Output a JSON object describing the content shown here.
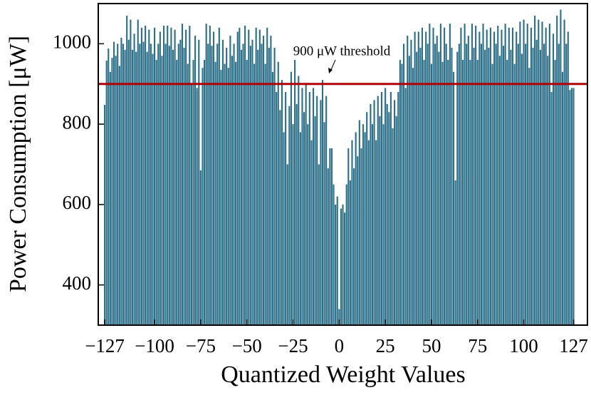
{
  "chart_data": {
    "type": "bar",
    "xlabel": "Quantized Weight Values",
    "ylabel": "Power Consumption [μW]",
    "color": "#2b6f88",
    "xlim": [
      -130.5,
      134.5
    ],
    "ylim": [
      300,
      1100
    ],
    "yticks": [
      400,
      600,
      800,
      1000
    ],
    "xticks": [
      {
        "value": -127,
        "label": "−127"
      },
      {
        "value": -100,
        "label": "−100"
      },
      {
        "value": -75,
        "label": "−75"
      },
      {
        "value": -50,
        "label": "−50"
      },
      {
        "value": -25,
        "label": "−25"
      },
      0,
      25,
      50,
      75,
      100,
      127
    ],
    "threshold": {
      "value": 900,
      "label": "900 μW threshold",
      "color": "#b00000"
    },
    "x": [
      -127,
      -126,
      -125,
      -124,
      -123,
      -122,
      -121,
      -120,
      -119,
      -118,
      -117,
      -116,
      -115,
      -114,
      -113,
      -112,
      -111,
      -110,
      -109,
      -108,
      -107,
      -106,
      -105,
      -104,
      -103,
      -102,
      -101,
      -100,
      -99,
      -98,
      -97,
      -96,
      -95,
      -94,
      -93,
      -92,
      -91,
      -90,
      -89,
      -88,
      -87,
      -86,
      -85,
      -84,
      -83,
      -82,
      -81,
      -80,
      -79,
      -78,
      -77,
      -76,
      -75,
      -74,
      -73,
      -72,
      -71,
      -70,
      -69,
      -68,
      -67,
      -66,
      -65,
      -64,
      -63,
      -62,
      -61,
      -60,
      -59,
      -58,
      -57,
      -56,
      -55,
      -54,
      -53,
      -52,
      -51,
      -50,
      -49,
      -48,
      -47,
      -46,
      -45,
      -44,
      -43,
      -42,
      -41,
      -40,
      -39,
      -38,
      -37,
      -36,
      -35,
      -34,
      -33,
      -32,
      -31,
      -30,
      -29,
      -28,
      -27,
      -26,
      -25,
      -24,
      -23,
      -22,
      -21,
      -20,
      -19,
      -18,
      -17,
      -16,
      -15,
      -14,
      -13,
      -12,
      -11,
      -10,
      -9,
      -8,
      -7,
      -6,
      -5,
      -4,
      -3,
      -2,
      -1,
      0,
      1,
      2,
      3,
      4,
      5,
      6,
      7,
      8,
      9,
      10,
      11,
      12,
      13,
      14,
      15,
      16,
      17,
      18,
      19,
      20,
      21,
      22,
      23,
      24,
      25,
      26,
      27,
      28,
      29,
      30,
      31,
      32,
      33,
      34,
      35,
      36,
      37,
      38,
      39,
      40,
      41,
      42,
      43,
      44,
      45,
      46,
      47,
      48,
      49,
      50,
      51,
      52,
      53,
      54,
      55,
      56,
      57,
      58,
      59,
      60,
      61,
      62,
      63,
      64,
      65,
      66,
      67,
      68,
      69,
      70,
      71,
      72,
      73,
      74,
      75,
      76,
      77,
      78,
      79,
      80,
      81,
      82,
      83,
      84,
      85,
      86,
      87,
      88,
      89,
      90,
      91,
      92,
      93,
      94,
      95,
      96,
      97,
      98,
      99,
      100,
      101,
      102,
      103,
      104,
      105,
      106,
      107,
      108,
      109,
      110,
      111,
      112,
      113,
      114,
      115,
      116,
      117,
      118,
      119,
      120,
      121,
      122,
      123,
      124,
      125,
      126,
      127
    ],
    "values": [
      848,
      958,
      988,
      930,
      965,
      1005,
      970,
      1000,
      945,
      1015,
      1000,
      985,
      1070,
      1010,
      1060,
      985,
      1025,
      980,
      1060,
      1000,
      1040,
      1005,
      1045,
      980,
      1035,
      1000,
      975,
      1040,
      960,
      1000,
      1030,
      970,
      1045,
      1000,
      1045,
      995,
      1040,
      985,
      1035,
      960,
      1000,
      1010,
      1050,
      990,
      1035,
      950,
      1045,
      900,
      960,
      1020,
      890,
      1010,
      685,
      940,
      960,
      1050,
      1000,
      1045,
      995,
      1030,
      955,
      1000,
      1040,
      935,
      1010,
      950,
      990,
      940,
      1020,
      970,
      1000,
      955,
      1030,
      1040,
      985,
      1000,
      1045,
      960,
      1035,
      995,
      1010,
      950,
      1040,
      985,
      1035,
      1000,
      1020,
      950,
      1040,
      990,
      1020,
      930,
      990,
      880,
      955,
      835,
      910,
      780,
      880,
      700,
      845,
      930,
      800,
      960,
      850,
      920,
      780,
      890,
      830,
      900,
      800,
      880,
      760,
      890,
      820,
      870,
      700,
      860,
      910,
      805,
      870,
      690,
      740,
      740,
      650,
      600,
      620,
      340,
      590,
      600,
      580,
      650,
      740,
      660,
      760,
      690,
      780,
      720,
      810,
      740,
      800,
      780,
      830,
      760,
      850,
      800,
      860,
      760,
      870,
      820,
      880,
      800,
      890,
      850,
      830,
      880,
      790,
      860,
      820,
      880,
      960,
      950,
      1000,
      890,
      1020,
      970,
      1010,
      940,
      1030,
      980,
      1030,
      990,
      1040,
      960,
      1030,
      1000,
      1050,
      950,
      1040,
      1000,
      1020,
      980,
      1050,
      955,
      1040,
      1000,
      960,
      1050,
      990,
      930,
      660,
      980,
      1000,
      1040,
      960,
      1050,
      1000,
      1020,
      960,
      1050,
      990,
      1045,
      960,
      1030,
      1000,
      1050,
      985,
      1035,
      990,
      1040,
      950,
      1030,
      1000,
      1045,
      970,
      1035,
      995,
      1050,
      960,
      1040,
      985,
      1040,
      950,
      1030,
      1000,
      1055,
      975,
      1060,
      1000,
      1050,
      940,
      1040,
      990,
      1070,
      1010,
      1060,
      985,
      1055,
      1000,
      1040,
      970,
      1050,
      880,
      1025,
      960,
      1070,
      1000,
      1085,
      930,
      1060,
      1000,
      1030,
      885,
      890,
      890
    ]
  }
}
